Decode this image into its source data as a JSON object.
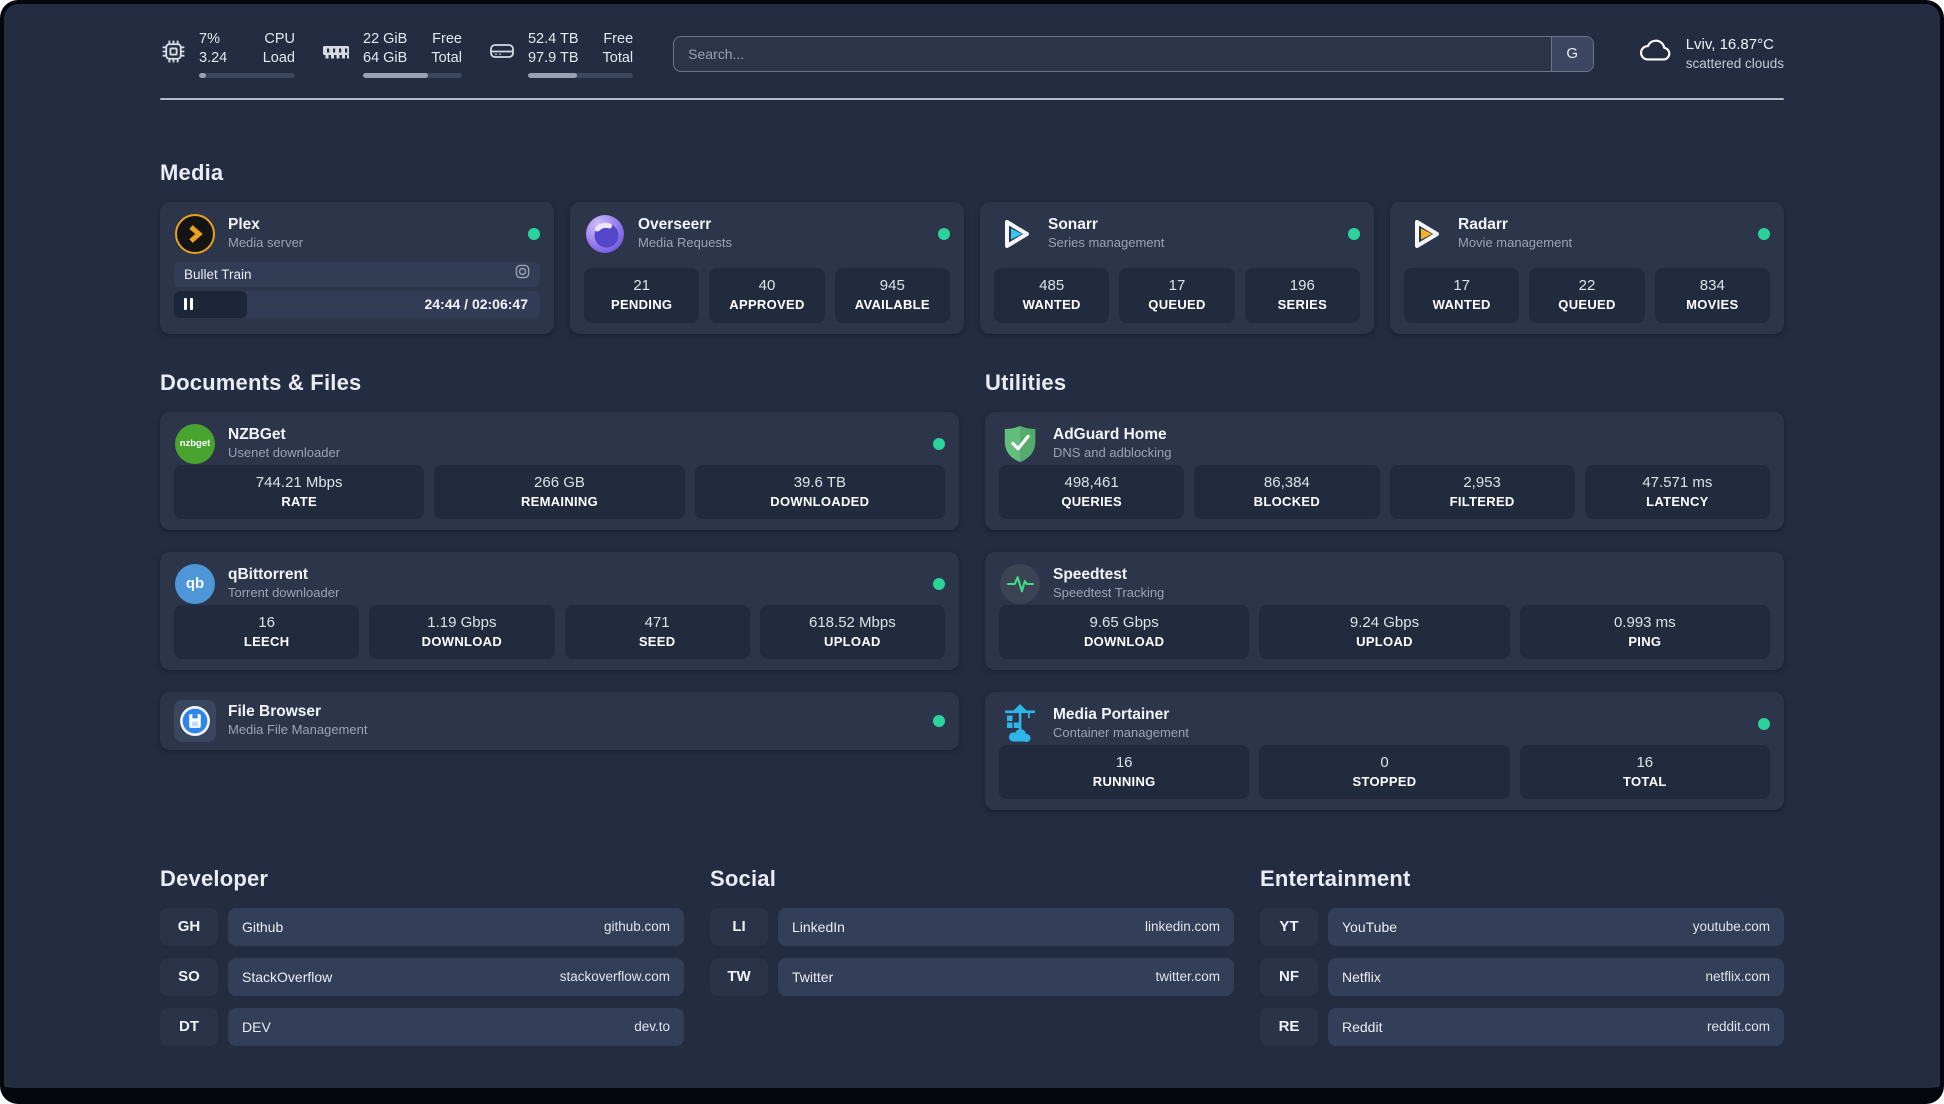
{
  "topbar": {
    "stats": [
      {
        "name": "cpu",
        "value_top": "7%",
        "value_bottom": "3.24",
        "label_top": "CPU",
        "label_bottom": "Load",
        "progress_pct": 7
      },
      {
        "name": "memory",
        "value_top": "22 GiB",
        "value_bottom": "64 GiB",
        "label_top": "Free",
        "label_bottom": "Total",
        "progress_pct": 66
      },
      {
        "name": "disk",
        "value_top": "52.4 TB",
        "value_bottom": "97.9 TB",
        "label_top": "Free",
        "label_bottom": "Total",
        "progress_pct": 47
      }
    ],
    "search": {
      "placeholder": "Search...",
      "provider_label": "G"
    },
    "weather": {
      "location": "Lviv, 16.87°C",
      "condition": "scattered clouds"
    }
  },
  "media": {
    "title": "Media",
    "plex": {
      "title": "Plex",
      "subtitle": "Media server",
      "status": "online",
      "player": {
        "item": "Bullet Train",
        "time": "24:44 / 02:06:47",
        "progress_pct": 20
      }
    },
    "overseerr": {
      "title": "Overseerr",
      "subtitle": "Media Requests",
      "status": "online",
      "stats": [
        {
          "value": "21",
          "label": "PENDING"
        },
        {
          "value": "40",
          "label": "APPROVED"
        },
        {
          "value": "945",
          "label": "AVAILABLE"
        }
      ]
    },
    "sonarr": {
      "title": "Sonarr",
      "subtitle": "Series management",
      "status": "online",
      "stats": [
        {
          "value": "485",
          "label": "WANTED"
        },
        {
          "value": "17",
          "label": "QUEUED"
        },
        {
          "value": "196",
          "label": "SERIES"
        }
      ]
    },
    "radarr": {
      "title": "Radarr",
      "subtitle": "Movie management",
      "status": "online",
      "stats": [
        {
          "value": "17",
          "label": "WANTED"
        },
        {
          "value": "22",
          "label": "QUEUED"
        },
        {
          "value": "834",
          "label": "MOVIES"
        }
      ]
    }
  },
  "documents": {
    "title": "Documents & Files",
    "nzbget": {
      "title": "NZBGet",
      "subtitle": "Usenet downloader",
      "status": "online",
      "stats": [
        {
          "value": "744.21 Mbps",
          "label": "RATE"
        },
        {
          "value": "266 GB",
          "label": "REMAINING"
        },
        {
          "value": "39.6 TB",
          "label": "DOWNLOADED"
        }
      ]
    },
    "qbittorrent": {
      "title": "qBittorrent",
      "subtitle": "Torrent downloader",
      "status": "online",
      "stats": [
        {
          "value": "16",
          "label": "LEECH"
        },
        {
          "value": "1.19 Gbps",
          "label": "DOWNLOAD"
        },
        {
          "value": "471",
          "label": "SEED"
        },
        {
          "value": "618.52 Mbps",
          "label": "UPLOAD"
        }
      ]
    },
    "filebrowser": {
      "title": "File Browser",
      "subtitle": "Media File Management",
      "status": "online"
    }
  },
  "utilities": {
    "title": "Utilities",
    "adguard": {
      "title": "AdGuard Home",
      "subtitle": "DNS and adblocking",
      "stats": [
        {
          "value": "498,461",
          "label": "QUERIES"
        },
        {
          "value": "86,384",
          "label": "BLOCKED"
        },
        {
          "value": "2,953",
          "label": "FILTERED"
        },
        {
          "value": "47.571 ms",
          "label": "LATENCY"
        }
      ]
    },
    "speedtest": {
      "title": "Speedtest",
      "subtitle": "Speedtest Tracking",
      "stats": [
        {
          "value": "9.65 Gbps",
          "label": "DOWNLOAD"
        },
        {
          "value": "9.24 Gbps",
          "label": "UPLOAD"
        },
        {
          "value": "0.993 ms",
          "label": "PING"
        }
      ]
    },
    "portainer": {
      "title": "Media Portainer",
      "subtitle": "Container management",
      "status": "online",
      "stats": [
        {
          "value": "16",
          "label": "RUNNING"
        },
        {
          "value": "0",
          "label": "STOPPED"
        },
        {
          "value": "16",
          "label": "TOTAL"
        }
      ]
    }
  },
  "bookmarks": {
    "developer": {
      "title": "Developer",
      "links": [
        {
          "abbr": "GH",
          "name": "Github",
          "url": "github.com"
        },
        {
          "abbr": "SO",
          "name": "StackOverflow",
          "url": "stackoverflow.com"
        },
        {
          "abbr": "DT",
          "name": "DEV",
          "url": "dev.to"
        }
      ]
    },
    "social": {
      "title": "Social",
      "links": [
        {
          "abbr": "LI",
          "name": "LinkedIn",
          "url": "linkedin.com"
        },
        {
          "abbr": "TW",
          "name": "Twitter",
          "url": "twitter.com"
        }
      ]
    },
    "entertainment": {
      "title": "Entertainment",
      "links": [
        {
          "abbr": "YT",
          "name": "YouTube",
          "url": "youtube.com"
        },
        {
          "abbr": "NF",
          "name": "Netflix",
          "url": "netflix.com"
        },
        {
          "abbr": "RE",
          "name": "Reddit",
          "url": "reddit.com"
        }
      ]
    }
  },
  "icons": {
    "nzbget_label": "nzbget",
    "qbittorrent_label": "qb"
  },
  "colors": {
    "status_online": "#2bd39b",
    "plex_accent": "#e8a21f",
    "sonarr_accent": "#38c6f4",
    "radarr_accent": "#f9b127",
    "background": "#232c41",
    "card": "#2c3549"
  }
}
